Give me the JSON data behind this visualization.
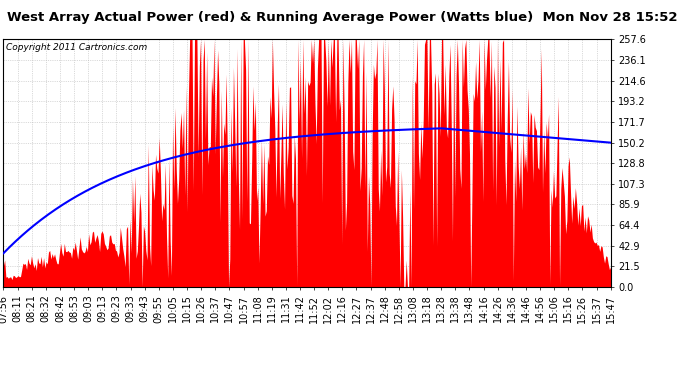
{
  "title": "West Array Actual Power (red) & Running Average Power (Watts blue)  Mon Nov 28 15:52",
  "copyright": "Copyright 2011 Cartronics.com",
  "ylabel_values": [
    0.0,
    21.5,
    42.9,
    64.4,
    85.9,
    107.3,
    128.8,
    150.2,
    171.7,
    193.2,
    214.6,
    236.1,
    257.6
  ],
  "ymax": 257.6,
  "ymin": 0.0,
  "background_color": "#ffffff",
  "plot_bg_color": "#ffffff",
  "grid_color": "#bbbbbb",
  "bar_color": "#ff0000",
  "avg_color": "#0000ff",
  "title_fontsize": 9.5,
  "copyright_fontsize": 6.5,
  "tick_fontsize": 7,
  "x_labels": [
    "07:56",
    "08:11",
    "08:21",
    "08:32",
    "08:42",
    "08:53",
    "09:03",
    "09:13",
    "09:23",
    "09:33",
    "09:43",
    "09:55",
    "10:05",
    "10:15",
    "10:26",
    "10:37",
    "10:47",
    "10:57",
    "11:08",
    "11:19",
    "11:31",
    "11:42",
    "11:52",
    "12:02",
    "12:16",
    "12:27",
    "12:37",
    "12:48",
    "12:58",
    "13:08",
    "13:18",
    "13:28",
    "13:38",
    "13:48",
    "14:16",
    "14:26",
    "14:36",
    "14:46",
    "14:56",
    "15:06",
    "15:16",
    "15:26",
    "15:37",
    "15:47"
  ]
}
